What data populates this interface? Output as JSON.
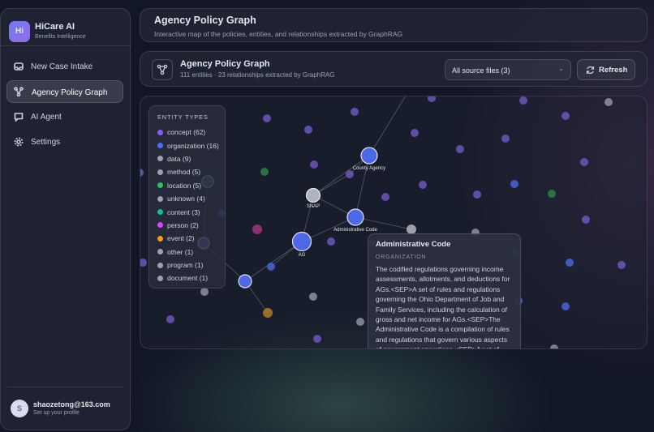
{
  "sidebar": {
    "logo": "Hi",
    "brand": "HiCare AI",
    "tagline": "Benefits Intelligence",
    "nav": [
      "New Case Intake",
      "Agency Policy Graph",
      "AI Agent",
      "Settings"
    ],
    "user": {
      "avatar": "S",
      "email": "shaozetong@163.com",
      "hint": "Set up your profile"
    }
  },
  "header": {
    "title": "Agency Policy Graph",
    "subtitle": "Interactive map of the policies, entities, and relationships extracted by GraphRAG"
  },
  "toolbar": {
    "title": "Agency Policy Graph",
    "stats": "111 entities · 23 relationships extracted by GraphRAG",
    "source_select": "All source files (3)",
    "refresh": "Refresh"
  },
  "legend": {
    "title": "ENTITY TYPES",
    "items": [
      {
        "label": "concept (62)",
        "color": "#8b5cf6"
      },
      {
        "label": "organization (16)",
        "color": "#4f6df0"
      },
      {
        "label": "data (9)",
        "color": "#9ca3af"
      },
      {
        "label": "method (5)",
        "color": "#9ca3af"
      },
      {
        "label": "location (5)",
        "color": "#22c55e"
      },
      {
        "label": "unknown (4)",
        "color": "#9ca3af"
      },
      {
        "label": "content (3)",
        "color": "#14b8a6"
      },
      {
        "label": "person (2)",
        "color": "#d946ef"
      },
      {
        "label": "event (2)",
        "color": "#f59e0b"
      },
      {
        "label": "other (1)",
        "color": "#9ca3af"
      },
      {
        "label": "program (1)",
        "color": "#9ca3af"
      },
      {
        "label": "document (1)",
        "color": "#9ca3af"
      }
    ]
  },
  "graph": {
    "node_labels": [
      "County Agency",
      "SNAP",
      "Administrative Code",
      "AG"
    ]
  },
  "tooltip": {
    "title": "Administrative Code",
    "type": "ORGANIZATION",
    "description": "The codified regulations governing income assessments, allotments, and deductions for AGs.<SEP>A set of rules and regulations governing the Ohio Department of Job and Family Services, including the calculation of gross and net income for AGs.<SEP>The Administrative Code is a compilation of rules and regulations that govern various aspects of government operations.<SEP>A set of"
  }
}
